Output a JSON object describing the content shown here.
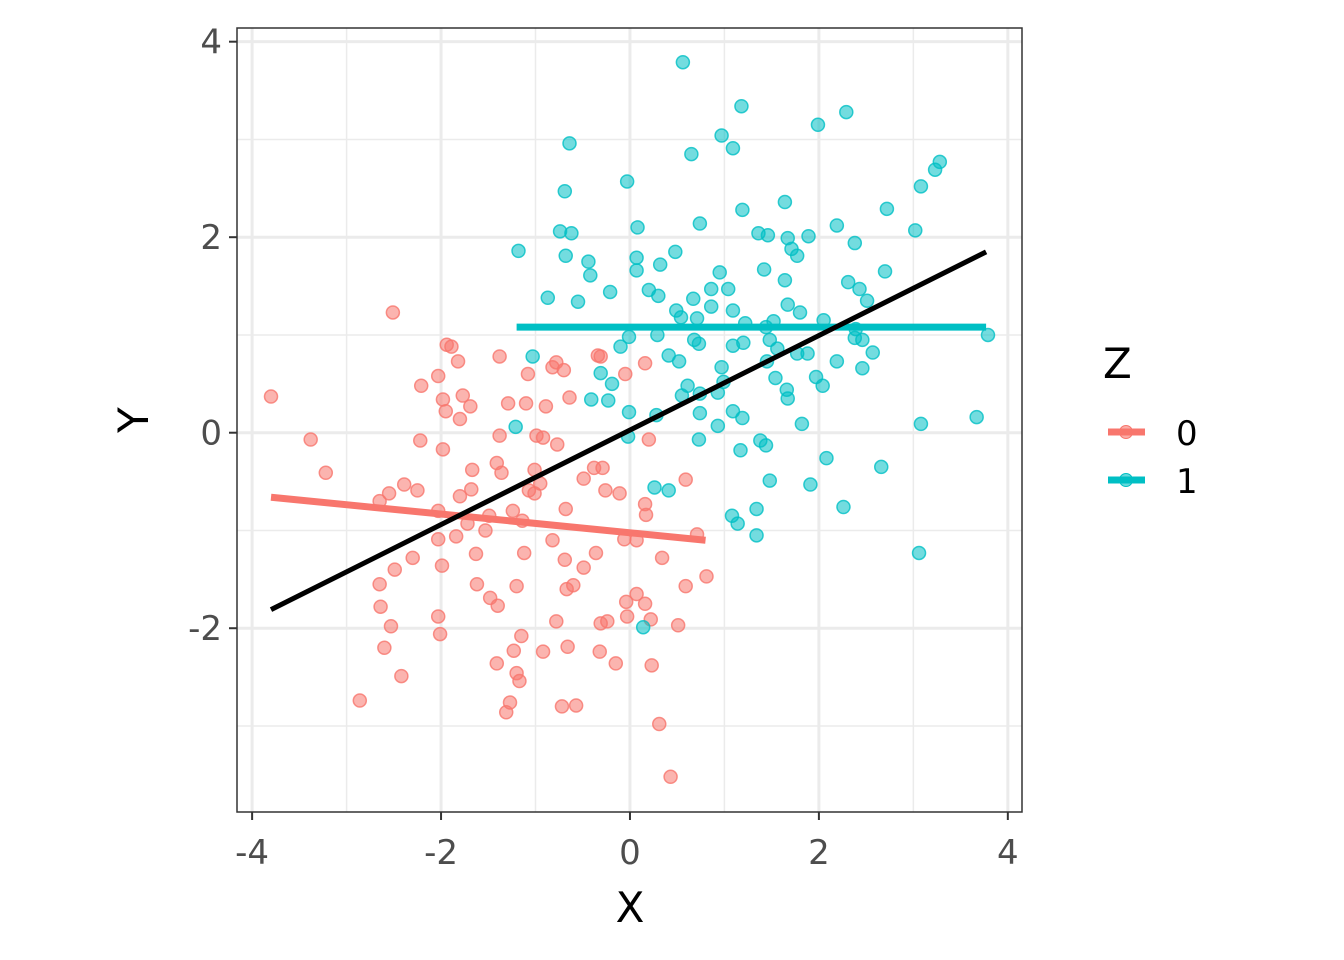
{
  "chart_data": {
    "type": "scatter",
    "title": "",
    "xlabel": "X",
    "ylabel": "Y",
    "xlim": [
      -4.16,
      4.15
    ],
    "ylim": [
      -3.88,
      4.14
    ],
    "x_ticks": [
      "-4",
      "-2",
      "0",
      "2",
      "4"
    ],
    "x_tick_values": [
      -4,
      -2,
      0,
      2,
      4
    ],
    "y_ticks": [
      "-2",
      "0",
      "2",
      "4"
    ],
    "y_tick_values": [
      -2,
      0,
      2,
      4
    ],
    "grid": true,
    "legend": {
      "title": "Z",
      "placement": "right",
      "entries": [
        {
          "label": "0",
          "color": "#F8766D"
        },
        {
          "label": "1",
          "color": "#00BFC4"
        }
      ]
    },
    "series": [
      {
        "name": "0",
        "color": "#F8766D",
        "points": [
          [
            -3.8,
            0.37
          ],
          [
            -3.38,
            -0.07
          ],
          [
            -3.22,
            -0.41
          ],
          [
            -2.51,
            1.23
          ],
          [
            -2.86,
            -2.74
          ],
          [
            -2.6,
            -2.2
          ],
          [
            -2.42,
            -2.49
          ],
          [
            -2.53,
            -1.98
          ],
          [
            -2.64,
            -1.78
          ],
          [
            -2.65,
            -1.55
          ],
          [
            -2.49,
            -1.4
          ],
          [
            -2.3,
            -1.28
          ],
          [
            -2.39,
            -0.53
          ],
          [
            -2.25,
            -0.59
          ],
          [
            -2.55,
            -0.62
          ],
          [
            -2.65,
            -0.7
          ],
          [
            -2.21,
            0.48
          ],
          [
            -2.22,
            -0.08
          ],
          [
            -2.03,
            0.58
          ],
          [
            -1.98,
            0.34
          ],
          [
            -1.95,
            0.22
          ],
          [
            -1.94,
            0.9
          ],
          [
            -1.89,
            0.88
          ],
          [
            -1.82,
            0.73
          ],
          [
            -1.77,
            0.38
          ],
          [
            -1.8,
            0.14
          ],
          [
            -1.98,
            -0.17
          ],
          [
            -1.67,
            -0.38
          ],
          [
            -1.68,
            -0.58
          ],
          [
            -1.8,
            -0.65
          ],
          [
            -2.03,
            -0.8
          ],
          [
            -2.03,
            -1.09
          ],
          [
            -1.84,
            -1.06
          ],
          [
            -1.99,
            -1.36
          ],
          [
            -2.03,
            -1.88
          ],
          [
            -2.01,
            -2.06
          ],
          [
            -1.63,
            -1.24
          ],
          [
            -1.62,
            -1.55
          ],
          [
            -1.53,
            -1.0
          ],
          [
            -1.48,
            -1.69
          ],
          [
            -1.4,
            -1.77
          ],
          [
            -1.41,
            -2.36
          ],
          [
            -1.29,
            0.3
          ],
          [
            -1.38,
            0.78
          ],
          [
            -1.41,
            -0.31
          ],
          [
            -1.36,
            -0.41
          ],
          [
            -1.24,
            -0.8
          ],
          [
            -1.23,
            -2.23
          ],
          [
            -1.2,
            -2.46
          ],
          [
            -1.17,
            -2.54
          ],
          [
            -1.27,
            -2.76
          ],
          [
            -1.31,
            -2.86
          ],
          [
            -1.2,
            -1.57
          ],
          [
            -1.15,
            -2.08
          ],
          [
            -1.12,
            -1.23
          ],
          [
            -1.1,
            0.3
          ],
          [
            -1.08,
            0.6
          ],
          [
            -1.07,
            -0.59
          ],
          [
            -1.01,
            -0.62
          ],
          [
            -0.99,
            -0.03
          ],
          [
            -0.92,
            -0.05
          ],
          [
            -0.89,
            0.27
          ],
          [
            -0.82,
            0.67
          ],
          [
            -0.78,
            0.72
          ],
          [
            -0.7,
            0.64
          ],
          [
            -0.64,
            0.36
          ],
          [
            -0.92,
            -2.24
          ],
          [
            -0.78,
            -1.93
          ],
          [
            -0.72,
            -2.8
          ],
          [
            -0.57,
            -2.79
          ],
          [
            -0.66,
            -2.19
          ],
          [
            -0.67,
            -1.6
          ],
          [
            -0.6,
            -1.56
          ],
          [
            -0.69,
            -1.3
          ],
          [
            -0.49,
            -1.38
          ],
          [
            -0.49,
            -0.47
          ],
          [
            -0.34,
            0.79
          ],
          [
            -0.31,
            0.78
          ],
          [
            -0.38,
            -0.36
          ],
          [
            -0.29,
            -0.36
          ],
          [
            -0.26,
            -0.59
          ],
          [
            -0.11,
            -0.62
          ],
          [
            -0.36,
            -1.23
          ],
          [
            -0.31,
            -1.95
          ],
          [
            -0.24,
            -1.93
          ],
          [
            -0.32,
            -2.24
          ],
          [
            -0.15,
            -2.36
          ],
          [
            -0.04,
            -1.73
          ],
          [
            -0.03,
            -1.88
          ],
          [
            0.07,
            -1.65
          ],
          [
            0.16,
            -1.75
          ],
          [
            0.22,
            -1.91
          ],
          [
            0.23,
            -2.38
          ],
          [
            0.31,
            -2.98
          ],
          [
            0.43,
            -3.52
          ],
          [
            0.51,
            -1.97
          ],
          [
            0.34,
            -1.28
          ],
          [
            0.59,
            -1.57
          ],
          [
            0.71,
            -1.04
          ],
          [
            0.81,
            -1.47
          ],
          [
            0.59,
            -0.48
          ],
          [
            0.16,
            0.71
          ],
          [
            -0.05,
            0.6
          ],
          [
            0.2,
            -0.07
          ],
          [
            0.16,
            -0.73
          ],
          [
            0.17,
            -0.84
          ],
          [
            -0.06,
            -1.09
          ],
          [
            0.07,
            -1.1
          ],
          [
            -0.77,
            -0.12
          ],
          [
            -0.82,
            -1.1
          ],
          [
            -1.14,
            -0.9
          ],
          [
            -1.49,
            -0.85
          ],
          [
            -1.72,
            -0.93
          ],
          [
            -0.95,
            -0.52
          ],
          [
            -1.01,
            -0.38
          ],
          [
            -1.38,
            -0.03
          ],
          [
            -0.68,
            -0.78
          ],
          [
            -1.69,
            0.27
          ]
        ],
        "fit_line": [
          [
            -3.8,
            -0.66
          ],
          [
            0.8,
            -1.1
          ]
        ]
      },
      {
        "name": "1",
        "color": "#00BFC4",
        "points": [
          [
            0.56,
            3.79
          ],
          [
            1.18,
            3.34
          ],
          [
            2.29,
            3.28
          ],
          [
            1.99,
            3.15
          ],
          [
            0.97,
            3.04
          ],
          [
            1.09,
            2.91
          ],
          [
            -0.64,
            2.96
          ],
          [
            0.65,
            2.85
          ],
          [
            3.28,
            2.77
          ],
          [
            3.23,
            2.69
          ],
          [
            3.08,
            2.52
          ],
          [
            -0.03,
            2.57
          ],
          [
            -0.69,
            2.47
          ],
          [
            2.72,
            2.29
          ],
          [
            1.64,
            2.36
          ],
          [
            1.19,
            2.28
          ],
          [
            0.74,
            2.14
          ],
          [
            0.08,
            2.1
          ],
          [
            2.19,
            2.12
          ],
          [
            3.02,
            2.07
          ],
          [
            -0.74,
            2.06
          ],
          [
            -0.62,
            2.04
          ],
          [
            1.36,
            2.04
          ],
          [
            1.46,
            2.02
          ],
          [
            1.89,
            2.01
          ],
          [
            1.67,
            1.99
          ],
          [
            2.38,
            1.94
          ],
          [
            1.71,
            1.88
          ],
          [
            1.77,
            1.81
          ],
          [
            -1.18,
            1.86
          ],
          [
            -0.44,
            1.75
          ],
          [
            -0.68,
            1.81
          ],
          [
            0.07,
            1.79
          ],
          [
            0.48,
            1.85
          ],
          [
            0.32,
            1.72
          ],
          [
            0.07,
            1.66
          ],
          [
            0.95,
            1.64
          ],
          [
            1.42,
            1.67
          ],
          [
            2.7,
            1.65
          ],
          [
            -0.42,
            1.61
          ],
          [
            1.64,
            1.56
          ],
          [
            2.31,
            1.54
          ],
          [
            1.04,
            1.47
          ],
          [
            0.2,
            1.46
          ],
          [
            -0.21,
            1.44
          ],
          [
            0.86,
            1.47
          ],
          [
            2.43,
            1.47
          ],
          [
            0.3,
            1.4
          ],
          [
            -0.87,
            1.38
          ],
          [
            -0.55,
            1.34
          ],
          [
            0.67,
            1.37
          ],
          [
            2.51,
            1.35
          ],
          [
            1.67,
            1.31
          ],
          [
            0.86,
            1.29
          ],
          [
            0.49,
            1.25
          ],
          [
            1.09,
            1.25
          ],
          [
            1.8,
            1.23
          ],
          [
            0.54,
            1.18
          ],
          [
            0.71,
            1.17
          ],
          [
            1.22,
            1.12
          ],
          [
            1.52,
            1.14
          ],
          [
            2.05,
            1.15
          ],
          [
            1.44,
            1.08
          ],
          [
            2.39,
            1.06
          ],
          [
            2.38,
            0.97
          ],
          [
            2.46,
            0.95
          ],
          [
            3.79,
            1.0
          ],
          [
            -0.01,
            0.98
          ],
          [
            0.29,
            1.0
          ],
          [
            0.68,
            0.95
          ],
          [
            0.73,
            0.91
          ],
          [
            1.09,
            0.89
          ],
          [
            1.2,
            0.92
          ],
          [
            1.56,
            0.86
          ],
          [
            1.48,
            0.95
          ],
          [
            1.77,
            0.81
          ],
          [
            1.88,
            0.81
          ],
          [
            2.57,
            0.82
          ],
          [
            -1.03,
            0.78
          ],
          [
            -0.1,
            0.88
          ],
          [
            0.41,
            0.79
          ],
          [
            0.52,
            0.73
          ],
          [
            1.45,
            0.73
          ],
          [
            2.19,
            0.73
          ],
          [
            2.46,
            0.66
          ],
          [
            0.97,
            0.67
          ],
          [
            0.99,
            0.52
          ],
          [
            -0.31,
            0.61
          ],
          [
            -0.19,
            0.5
          ],
          [
            0.61,
            0.48
          ],
          [
            1.54,
            0.56
          ],
          [
            1.97,
            0.57
          ],
          [
            2.04,
            0.48
          ],
          [
            1.66,
            0.44
          ],
          [
            0.74,
            0.4
          ],
          [
            0.93,
            0.41
          ],
          [
            0.55,
            0.38
          ],
          [
            -0.41,
            0.34
          ],
          [
            -0.23,
            0.33
          ],
          [
            1.67,
            0.35
          ],
          [
            -0.01,
            0.21
          ],
          [
            0.74,
            0.2
          ],
          [
            1.09,
            0.22
          ],
          [
            1.19,
            0.15
          ],
          [
            0.28,
            0.18
          ],
          [
            3.67,
            0.16
          ],
          [
            3.08,
            0.09
          ],
          [
            1.82,
            0.09
          ],
          [
            0.93,
            0.07
          ],
          [
            -1.21,
            0.06
          ],
          [
            -0.02,
            -0.04
          ],
          [
            0.73,
            -0.07
          ],
          [
            1.38,
            -0.08
          ],
          [
            1.44,
            -0.13
          ],
          [
            1.17,
            -0.18
          ],
          [
            2.08,
            -0.26
          ],
          [
            2.66,
            -0.35
          ],
          [
            0.26,
            -0.56
          ],
          [
            0.41,
            -0.59
          ],
          [
            1.48,
            -0.49
          ],
          [
            1.91,
            -0.53
          ],
          [
            2.26,
            -0.76
          ],
          [
            1.08,
            -0.85
          ],
          [
            1.14,
            -0.93
          ],
          [
            1.34,
            -0.78
          ],
          [
            1.34,
            -1.05
          ],
          [
            3.06,
            -1.23
          ],
          [
            0.14,
            -1.99
          ]
        ],
        "fit_line": [
          [
            -1.2,
            1.08
          ],
          [
            3.77,
            1.08
          ]
        ]
      }
    ],
    "overall_fit_line": {
      "color": "#000000",
      "points": [
        [
          -3.8,
          -1.81
        ],
        [
          3.77,
          1.85
        ]
      ]
    }
  }
}
